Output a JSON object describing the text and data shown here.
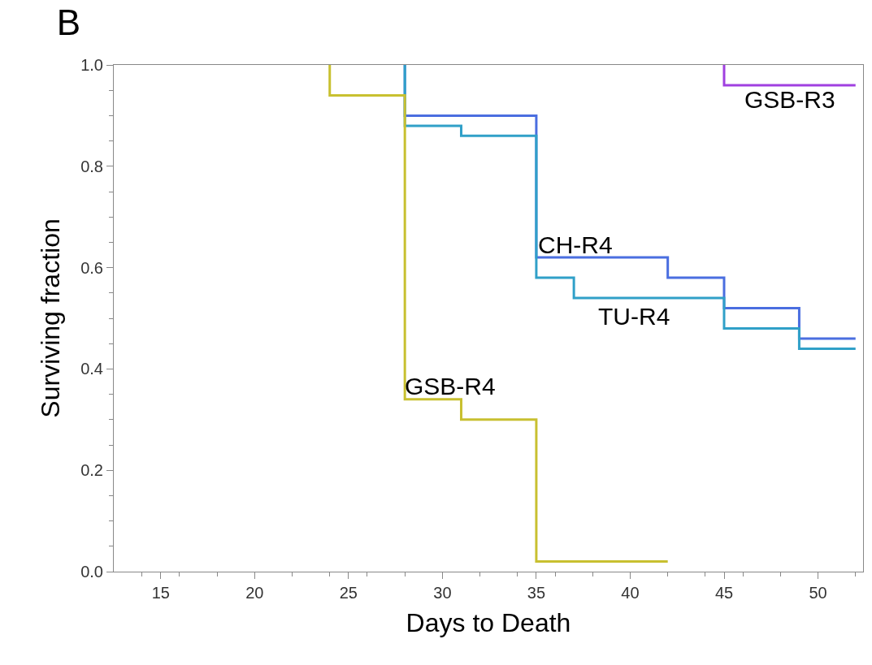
{
  "chart_data": {
    "type": "step",
    "title": "B",
    "xlabel": "Days to Death",
    "ylabel": "Surviving fraction",
    "xlim": [
      12.5,
      52.4
    ],
    "xticks": [
      15,
      20,
      25,
      30,
      35,
      40,
      45,
      50
    ],
    "ylim": [
      0,
      1
    ],
    "yticks": [
      {
        "value": 0,
        "label": "0.0"
      },
      {
        "value": 0.2,
        "label": "0.2"
      },
      {
        "value": 0.4,
        "label": "0.4"
      },
      {
        "value": 0.6,
        "label": "0.6"
      },
      {
        "value": 0.8,
        "label": "0.8"
      },
      {
        "value": 1,
        "label": "1.0"
      }
    ],
    "legend": false,
    "series": [
      {
        "name": "GSB-R3",
        "color": "#a040e0",
        "x": [
          45,
          45,
          52
        ],
        "values": [
          1.0,
          0.96,
          0.96
        ]
      },
      {
        "name": "CH-R4",
        "color": "#4a6ee0",
        "x": [
          28,
          28,
          35,
          42,
          45,
          49,
          52
        ],
        "values": [
          1.0,
          0.9,
          0.62,
          0.58,
          0.52,
          0.46,
          0.46
        ]
      },
      {
        "name": "TU-R4",
        "color": "#30a0c8",
        "x": [
          28,
          28,
          31,
          35,
          37,
          45,
          49,
          52
        ],
        "values": [
          1.0,
          0.88,
          0.86,
          0.58,
          0.54,
          0.48,
          0.44,
          0.44
        ]
      },
      {
        "name": "GSB-R4",
        "color": "#c8c030",
        "x": [
          24,
          24,
          28,
          31,
          35,
          42
        ],
        "values": [
          1.0,
          0.94,
          0.34,
          0.3,
          0.02,
          0.02
        ]
      }
    ]
  }
}
